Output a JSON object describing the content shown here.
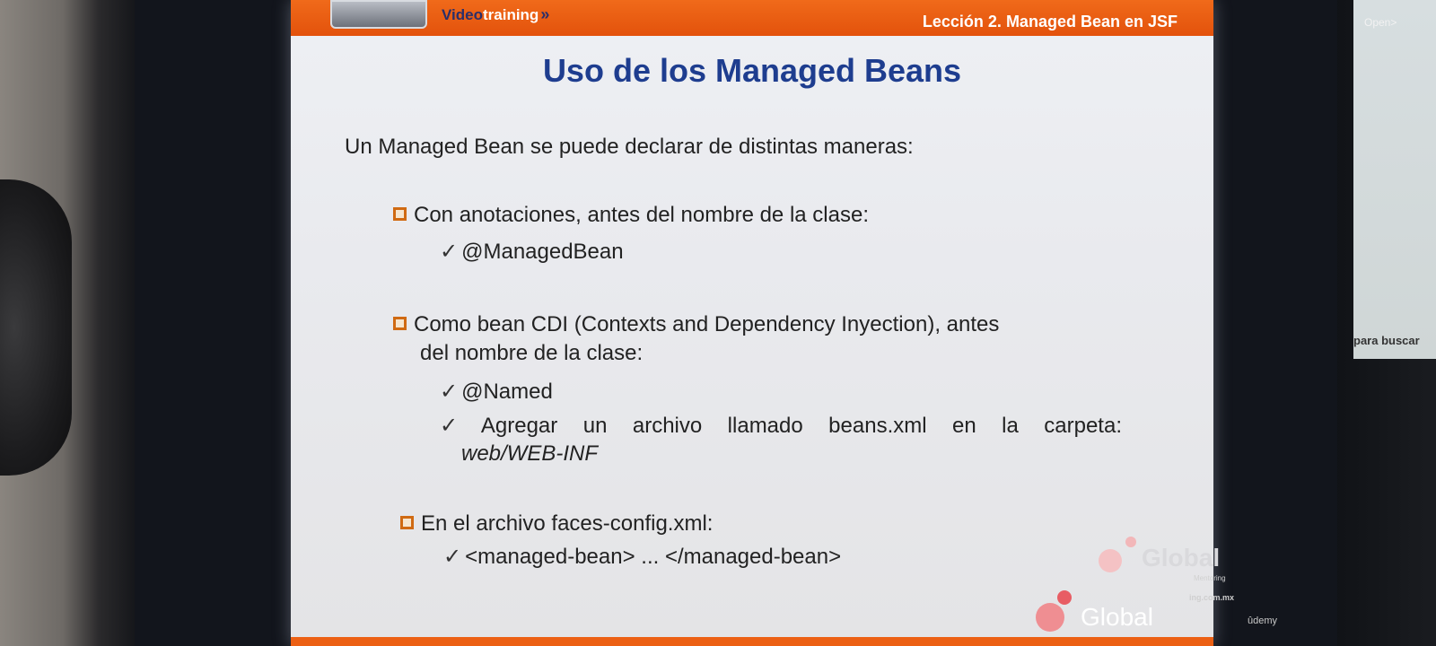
{
  "header": {
    "brand_part1": "Video",
    "brand_part2": "training",
    "lesson": "Lección 2. Managed Bean en JSF"
  },
  "slide": {
    "title": "Uso de los Managed Beans",
    "intro": "Un Managed Bean se puede declarar de distintas maneras:",
    "bullets": [
      {
        "text": "Con anotaciones, antes del nombre de la clase:",
        "items": [
          "@ManagedBean"
        ]
      },
      {
        "text_line1": "Como bean CDI (Contexts and Dependency Inyection), antes",
        "text_line2": "del nombre de la clase:",
        "items": [
          "@Named",
          "Agregar un archivo llamado beans.xml en la carpeta:",
          "web/WEB-INF"
        ]
      },
      {
        "text": "En el archivo faces-config.xml:",
        "items": [
          "<managed-bean> ... </managed-bean>"
        ]
      }
    ],
    "watermark": "Global",
    "watermark_sub": "Mentoring",
    "url_fragment": "ing.com.mx"
  },
  "overlay": {
    "top_right": "Open>",
    "search_hint": "para buscar",
    "udemy": "ûdemy"
  },
  "colors": {
    "accent_orange": "#e3520c",
    "title_blue": "#1e3d8f"
  }
}
